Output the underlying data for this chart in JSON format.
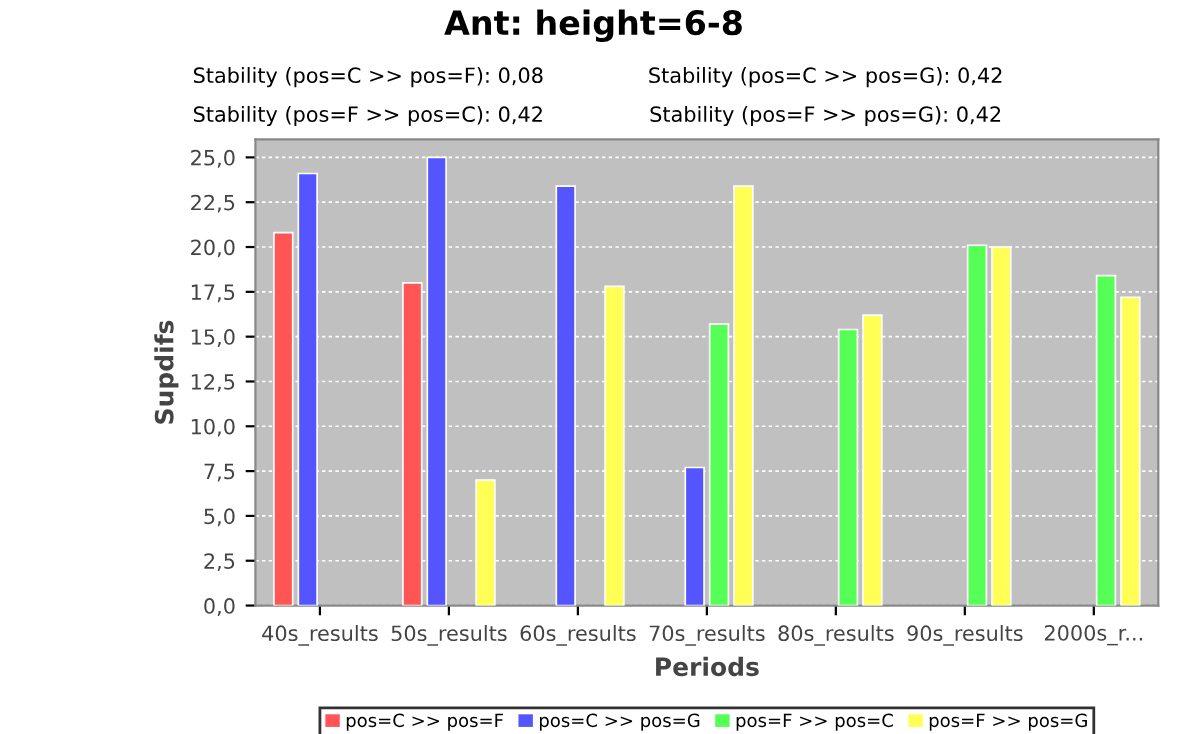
{
  "chart_data": {
    "type": "bar",
    "title": "Ant: height=6-8",
    "annotations": [
      "Stability (pos=C >> pos=F): 0,08",
      "Stability (pos=C >> pos=G): 0,42",
      "Stability (pos=F >> pos=C): 0,42",
      "Stability (pos=F >> pos=G): 0,42"
    ],
    "xlabel": "Periods",
    "ylabel": "Supdifs",
    "categories": [
      "40s_results",
      "50s_results",
      "60s_results",
      "70s_results",
      "80s_results",
      "90s_results",
      "2000s_r..."
    ],
    "series": [
      {
        "name": "pos=C >> pos=F",
        "color": "#ff5555",
        "values": [
          20.8,
          18.0,
          null,
          null,
          null,
          null,
          null
        ]
      },
      {
        "name": "pos=C >> pos=G",
        "color": "#5555ff",
        "values": [
          24.1,
          25.0,
          23.4,
          7.7,
          null,
          null,
          null
        ]
      },
      {
        "name": "pos=F >> pos=C",
        "color": "#55ff55",
        "values": [
          null,
          null,
          null,
          15.7,
          15.4,
          20.1,
          18.4
        ]
      },
      {
        "name": "pos=F >> pos=G",
        "color": "#ffff55",
        "values": [
          null,
          7.0,
          17.8,
          23.4,
          16.2,
          20.0,
          17.2
        ]
      }
    ],
    "ylim": [
      0,
      26
    ],
    "yticks": [
      {
        "value": 0,
        "label": "0,0"
      },
      {
        "value": 2.5,
        "label": "2,5"
      },
      {
        "value": 5,
        "label": "5,0"
      },
      {
        "value": 7.5,
        "label": "7,5"
      },
      {
        "value": 10,
        "label": "10,0"
      },
      {
        "value": 12.5,
        "label": "12,5"
      },
      {
        "value": 15,
        "label": "15,0"
      },
      {
        "value": 17.5,
        "label": "17,5"
      },
      {
        "value": 20,
        "label": "20,0"
      },
      {
        "value": 22.5,
        "label": "22,5"
      },
      {
        "value": 25,
        "label": "25,0"
      }
    ],
    "grid": "y",
    "legend": "bottom"
  }
}
